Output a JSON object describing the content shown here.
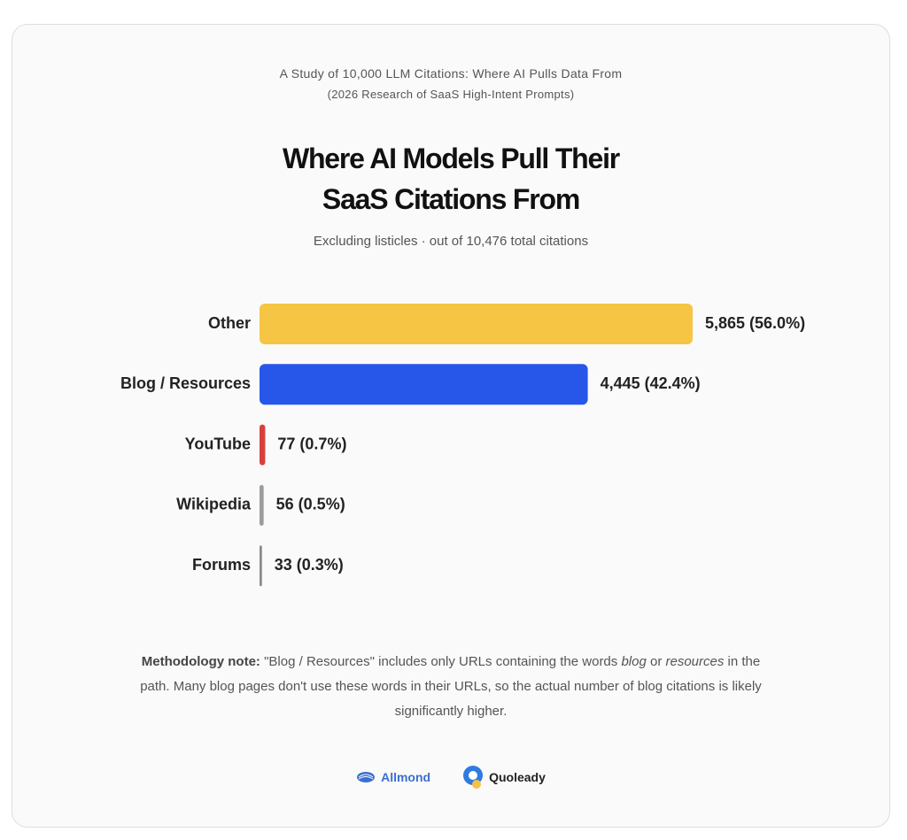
{
  "chart_data": {
    "type": "bar",
    "orientation": "horizontal",
    "kicker": "A Study of 10,000 LLM Citations: Where AI Pulls Data From",
    "kicker_sub": "(2026 Research of SaaS High-Intent Prompts)",
    "title": "Where AI Models Pull Their SaaS Citations From",
    "subtitle": "Excluding listicles · out of 10,476 total citations",
    "categories": [
      "Other",
      "Blog / Resources",
      "YouTube",
      "Wikipedia",
      "Forums"
    ],
    "values": [
      5865,
      4445,
      77,
      56,
      33
    ],
    "value_labels": [
      "5,865 (56.0%)",
      "4,445 (42.4%)",
      "77 (0.7%)",
      "56 (0.5%)",
      "33 (0.3%)"
    ],
    "colors": [
      "#f6c544",
      "#2757e8",
      "#d8413b",
      "#9c9c9c",
      "#8a8a8a"
    ]
  },
  "note": {
    "label": "Methodology note:",
    "parts": [
      "\"Blog / Resources\" includes only URLs containing the words ",
      "blog",
      " or ",
      "resources",
      " in the path. Many blog pages don't use these words in their URLs, so the actual number of blog citations is likely significantly higher."
    ]
  },
  "footer": {
    "logos": [
      "Allmond",
      "Quoleady"
    ]
  }
}
